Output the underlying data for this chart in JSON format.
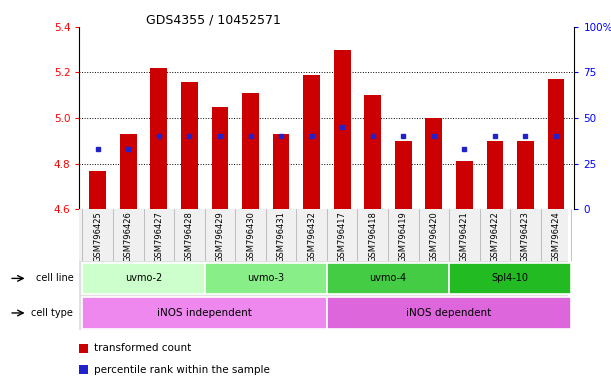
{
  "title": "GDS4355 / 10452571",
  "samples": [
    "GSM796425",
    "GSM796426",
    "GSM796427",
    "GSM796428",
    "GSM796429",
    "GSM796430",
    "GSM796431",
    "GSM796432",
    "GSM796417",
    "GSM796418",
    "GSM796419",
    "GSM796420",
    "GSM796421",
    "GSM796422",
    "GSM796423",
    "GSM796424"
  ],
  "bar_heights": [
    4.77,
    4.93,
    5.22,
    5.16,
    5.05,
    5.11,
    4.93,
    5.19,
    5.3,
    5.1,
    4.9,
    5.0,
    4.81,
    4.9,
    4.9,
    5.17
  ],
  "blue_dot_pct": [
    33,
    33,
    40,
    40,
    40,
    40,
    40,
    40,
    45,
    40,
    40,
    40,
    33,
    40,
    40,
    40
  ],
  "bar_color": "#cc0000",
  "dot_color": "#2222cc",
  "baseline": 4.6,
  "ylim_left": [
    4.6,
    5.4
  ],
  "ylim_right": [
    0,
    100
  ],
  "yticks_left": [
    4.6,
    4.8,
    5.0,
    5.2,
    5.4
  ],
  "yticks_right": [
    0,
    25,
    50,
    75,
    100
  ],
  "grid_lines": [
    4.8,
    5.0,
    5.2
  ],
  "cell_lines": [
    {
      "label": "uvmo-2",
      "start": 0,
      "end": 4,
      "color": "#ccffcc"
    },
    {
      "label": "uvmo-3",
      "start": 4,
      "end": 8,
      "color": "#88ee88"
    },
    {
      "label": "uvmo-4",
      "start": 8,
      "end": 12,
      "color": "#44cc44"
    },
    {
      "label": "Spl4-10",
      "start": 12,
      "end": 16,
      "color": "#22bb22"
    }
  ],
  "cell_types": [
    {
      "label": "iNOS independent",
      "start": 0,
      "end": 8,
      "color": "#ee88ee"
    },
    {
      "label": "iNOS dependent",
      "start": 8,
      "end": 16,
      "color": "#dd66dd"
    }
  ],
  "legend_items": [
    {
      "label": "transformed count",
      "color": "#cc0000"
    },
    {
      "label": "percentile rank within the sample",
      "color": "#2222cc"
    }
  ]
}
